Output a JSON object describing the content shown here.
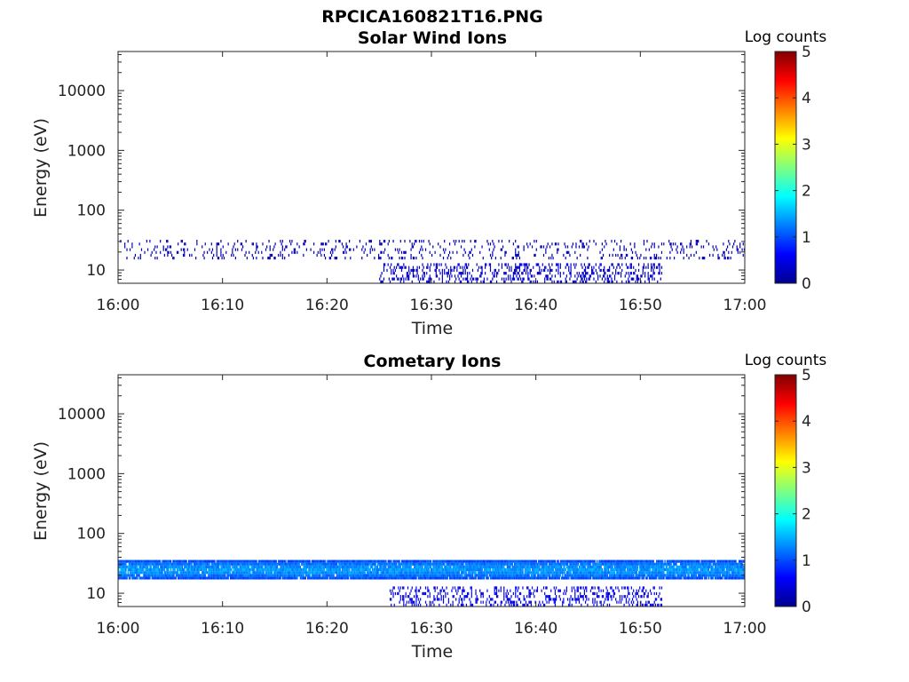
{
  "figure_title": "RPCICA160821T16.PNG",
  "chart_data": [
    {
      "type": "heatmap",
      "title": "Solar Wind Ions",
      "xlabel": "Time",
      "ylabel": "Energy (eV)",
      "x_ticks": [
        "16:00",
        "16:10",
        "16:20",
        "16:30",
        "16:40",
        "16:50",
        "17:00"
      ],
      "xlim": [
        "16:00",
        "17:00"
      ],
      "y_scale": "log",
      "y_ticks": [
        10,
        100,
        1000,
        10000
      ],
      "y_tick_labels": [
        "10",
        "100",
        "1000",
        "10000"
      ],
      "ylim": [
        6,
        45000
      ],
      "colorbar": {
        "label": "Log counts",
        "range": [
          0,
          5
        ],
        "ticks": [
          "0",
          "1",
          "2",
          "3",
          "4",
          "5"
        ],
        "colormap": "jet"
      },
      "features": [
        {
          "description": "sparse scattered counts",
          "time": [
            "16:00",
            "17:00"
          ],
          "energy_eV": [
            15,
            32
          ],
          "log_counts": 0.3
        },
        {
          "description": "denser low-energy band",
          "time": [
            "16:25",
            "16:52"
          ],
          "energy_eV": [
            6,
            13
          ],
          "log_counts": 0.4
        }
      ]
    },
    {
      "type": "heatmap",
      "title": "Cometary Ions",
      "xlabel": "Time",
      "ylabel": "Energy (eV)",
      "x_ticks": [
        "16:00",
        "16:10",
        "16:20",
        "16:30",
        "16:40",
        "16:50",
        "17:00"
      ],
      "xlim": [
        "16:00",
        "17:00"
      ],
      "y_scale": "log",
      "y_ticks": [
        10,
        100,
        1000,
        10000
      ],
      "y_tick_labels": [
        "10",
        "100",
        "1000",
        "10000"
      ],
      "ylim": [
        6,
        45000
      ],
      "colorbar": {
        "label": "Log counts",
        "range": [
          0,
          5
        ],
        "ticks": [
          "0",
          "1",
          "2",
          "3",
          "4",
          "5"
        ],
        "colormap": "jet"
      },
      "features": [
        {
          "description": "continuous band",
          "time": [
            "16:00",
            "17:00"
          ],
          "energy_eV": [
            17,
            36
          ],
          "log_counts": 1.3
        },
        {
          "description": "low-energy band",
          "time": [
            "16:26",
            "16:52"
          ],
          "energy_eV": [
            6,
            13
          ],
          "log_counts": 0.6
        }
      ]
    }
  ]
}
